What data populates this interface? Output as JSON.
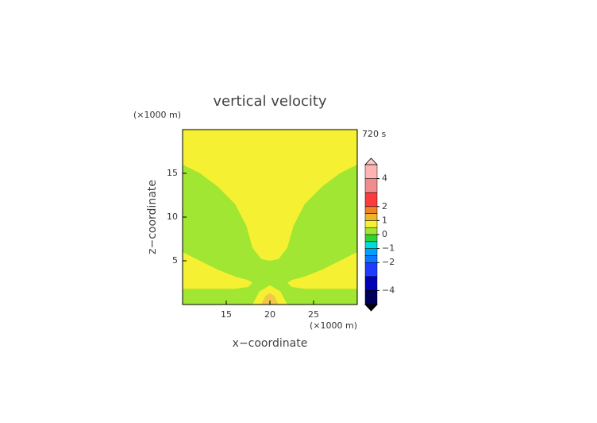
{
  "chart_data": {
    "type": "contour",
    "title": "vertical velocity",
    "y_unit": "(×1000 m)",
    "x_unit": "(×1000 m)",
    "time_label": "720 s",
    "xlabel": "x−coordinate",
    "ylabel": "z−coordinate",
    "xlim": [
      10,
      30
    ],
    "ylim": [
      0,
      20
    ],
    "xticks": [
      15,
      20,
      25
    ],
    "yticks": [
      5,
      10,
      15
    ],
    "regions": [
      {
        "color": "#f5f032",
        "x": [
          10,
          30,
          30,
          10
        ],
        "y": [
          0,
          0,
          20,
          20
        ]
      },
      {
        "color": "#a0e632",
        "x": [
          10,
          12,
          14,
          16,
          17.3,
          18,
          19,
          20,
          21,
          22,
          22.7,
          24,
          26,
          28,
          30,
          30,
          10
        ],
        "y": [
          16,
          15,
          13.5,
          11.5,
          9,
          6.5,
          5.2,
          5,
          5.2,
          6.5,
          9,
          11.5,
          13.5,
          15,
          16,
          0,
          0
        ]
      },
      {
        "color": "#f5f032",
        "x": [
          10,
          12,
          14,
          16,
          17.5,
          18,
          17.5,
          16,
          13,
          10
        ],
        "y": [
          6,
          5,
          4,
          3.2,
          2.8,
          2.5,
          2,
          1.8,
          1.8,
          1.8
        ]
      },
      {
        "color": "#f5f032",
        "x": [
          30,
          28,
          26,
          24,
          22.5,
          22,
          22.5,
          24,
          27,
          30
        ],
        "y": [
          6,
          5,
          4,
          3.2,
          2.8,
          2.5,
          2,
          1.8,
          1.8,
          1.8
        ]
      },
      {
        "color": "#f5f032",
        "x": [
          18,
          18.8,
          20,
          21.2,
          22
        ],
        "y": [
          0,
          1.5,
          2.2,
          1.5,
          0
        ]
      },
      {
        "color": "#f0c846",
        "x": [
          19,
          19.5,
          20,
          20.5,
          21
        ],
        "y": [
          0,
          1,
          1.3,
          1,
          0
        ]
      }
    ],
    "colorbar": {
      "lim": [
        -5,
        5
      ],
      "levels": [
        -5,
        -4,
        -3,
        -2,
        -1.5,
        -1,
        -0.5,
        0,
        0.5,
        1,
        1.5,
        2,
        3,
        4,
        5
      ],
      "colors": [
        "#00005a",
        "#0000b4",
        "#1e3cff",
        "#0a78ff",
        "#00a0ff",
        "#00dcdc",
        "#32d232",
        "#a0e632",
        "#f5f032",
        "#f0b428",
        "#f08228",
        "#fa3c3c",
        "#f08c8c",
        "#ffb4b4"
      ],
      "ticks": [
        {
          "value": -4,
          "label": "−4"
        },
        {
          "value": -2,
          "label": "−2"
        },
        {
          "value": -1,
          "label": "−1"
        },
        0,
        1,
        2,
        4
      ]
    }
  }
}
